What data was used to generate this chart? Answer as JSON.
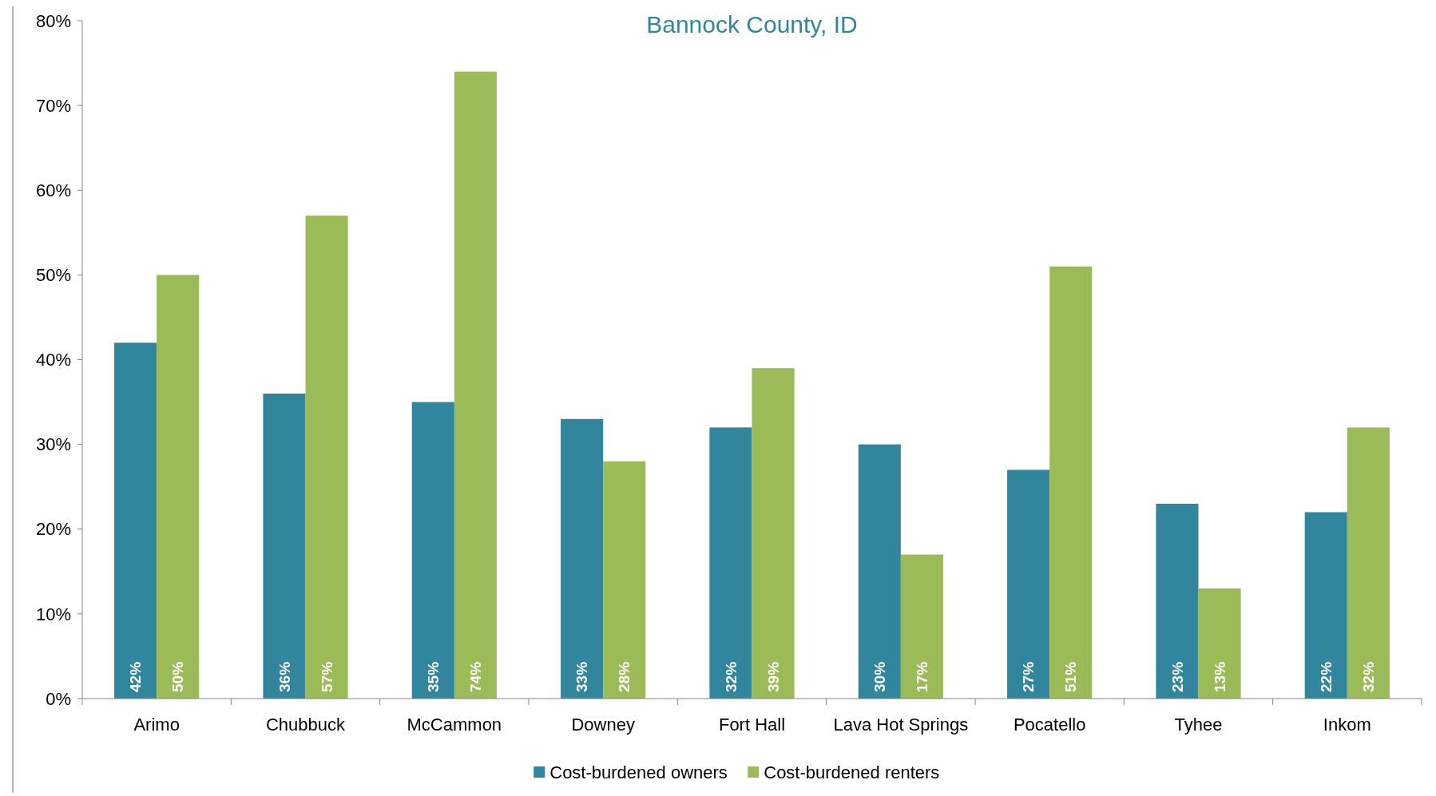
{
  "chart_data": {
    "type": "bar",
    "title": "Bannock County, ID",
    "categories": [
      "Arimo",
      "Chubbuck",
      "McCammon",
      "Downey",
      "Fort Hall",
      "Lava Hot Springs",
      "Pocatello",
      "Tyhee",
      "Inkom"
    ],
    "series": [
      {
        "name": "Cost-burdened owners",
        "color": "#31859c",
        "values": [
          42,
          36,
          35,
          33,
          32,
          30,
          27,
          23,
          22
        ],
        "value_labels": [
          "42%",
          "36%",
          "35%",
          "33%",
          "32%",
          "30%",
          "27%",
          "23%",
          "22%"
        ]
      },
      {
        "name": "Cost-burdened renters",
        "color": "#9bbb59",
        "values": [
          50,
          57,
          74,
          28,
          39,
          17,
          51,
          13,
          32
        ],
        "value_labels": [
          "50%",
          "57%",
          "74%",
          "28%",
          "39%",
          "17%",
          "51%",
          "13%",
          "32%"
        ]
      }
    ],
    "ylim": [
      0,
      80
    ],
    "yticks": [
      {
        "value": 0,
        "label": "0%"
      },
      {
        "value": 10,
        "label": "10%"
      },
      {
        "value": 20,
        "label": "20%"
      },
      {
        "value": 30,
        "label": "30%"
      },
      {
        "value": 40,
        "label": "40%"
      },
      {
        "value": 50,
        "label": "50%"
      },
      {
        "value": 60,
        "label": "60%"
      },
      {
        "value": 70,
        "label": "70%"
      },
      {
        "value": 80,
        "label": "80%"
      }
    ],
    "grid": false,
    "legend": "bottom"
  }
}
